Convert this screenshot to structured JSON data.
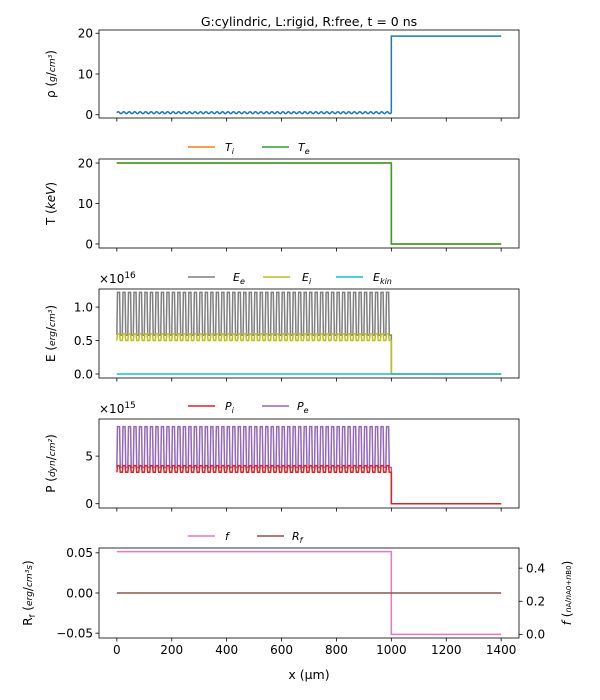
{
  "figure": {
    "title": "G:cylindric, L:rigid, R:free, t = 0 ns",
    "xlabel": "x (μm)"
  },
  "chart_data": [
    {
      "type": "line",
      "ylabel": "ρ (g/cm³)",
      "ylim": [
        -0.8,
        20.8
      ],
      "yticks": [
        0,
        10,
        20
      ],
      "multiplier": "",
      "legend": [],
      "series": [
        {
          "name": "ρ",
          "color": "#1f77b4",
          "kind": "rho",
          "left": 0.5,
          "right": 19.3,
          "osc_amp": 0.25,
          "ncycles": 50
        }
      ]
    },
    {
      "type": "line",
      "ylabel": "T (keV)",
      "ylim": [
        -1.0,
        21.0
      ],
      "yticks": [
        0,
        10,
        20
      ],
      "multiplier": "",
      "legend": [
        {
          "label": "T",
          "sub": "i",
          "color": "#ff7f0e"
        },
        {
          "label": "T",
          "sub": "e",
          "color": "#2ca02c"
        }
      ],
      "series": [
        {
          "name": "Ti",
          "color": "#ff7f0e",
          "kind": "step",
          "left": 20,
          "right": 0
        },
        {
          "name": "Te",
          "color": "#2ca02c",
          "kind": "step",
          "left": 20,
          "right": 0
        }
      ]
    },
    {
      "type": "line",
      "ylabel": "E (erg/cm³)",
      "ylim": [
        -0.06,
        1.27
      ],
      "yticks": [
        0.0,
        0.5,
        1.0
      ],
      "ytick_labels": [
        "0.0",
        "0.5",
        "1.0"
      ],
      "multiplier": "×10",
      "multiplier_exp": "16",
      "legend": [
        {
          "label": "E",
          "sub": "e",
          "color": "#7f7f7f"
        },
        {
          "label": "E",
          "sub": "i",
          "color": "#bcbd22"
        },
        {
          "label": "E",
          "sub": "kin",
          "color": "#17becf"
        }
      ],
      "series": [
        {
          "name": "Ee",
          "color": "#7f7f7f",
          "kind": "osc",
          "low": 0.58,
          "high": 1.22,
          "right": 0,
          "ncycles": 50
        },
        {
          "name": "Ei",
          "color": "#bcbd22",
          "kind": "osc",
          "low": 0.5,
          "high": 0.6,
          "right": 0,
          "ncycles": 50
        },
        {
          "name": "Ekin",
          "color": "#17becf",
          "kind": "step",
          "left": 0,
          "right": 0
        }
      ]
    },
    {
      "type": "line",
      "ylabel": "P (dyn/cm²)",
      "ylim": [
        -0.45,
        8.9
      ],
      "yticks": [
        0,
        5
      ],
      "multiplier": "×10",
      "multiplier_exp": "15",
      "legend": [
        {
          "label": "P",
          "sub": "i",
          "color": "#d62728"
        },
        {
          "label": "P",
          "sub": "e",
          "color": "#9467bd"
        }
      ],
      "series": [
        {
          "name": "Pe",
          "color": "#9467bd",
          "kind": "osc",
          "low": 3.8,
          "high": 8.1,
          "right": 0,
          "ncycles": 50
        },
        {
          "name": "Pi",
          "color": "#d62728",
          "kind": "osc",
          "low": 3.3,
          "high": 4.0,
          "right": 0,
          "ncycles": 50
        }
      ]
    },
    {
      "type": "line",
      "ylabel": "R_f (erg/cm³s)",
      "ylim": [
        -0.056,
        0.056
      ],
      "yticks": [
        -0.05,
        0.0,
        0.05
      ],
      "ytick_labels": [
        "−0.05",
        "0.00",
        "0.05"
      ],
      "multiplier": "",
      "y2label": "f (nA/(nA0+nB0))",
      "y2lim": [
        -0.022,
        0.522
      ],
      "y2ticks": [
        0.0,
        0.2,
        0.4
      ],
      "y2tick_labels": [
        "0.0",
        "0.2",
        "0.4"
      ],
      "legend": [
        {
          "label": "f",
          "sub": "",
          "color": "#e377c2"
        },
        {
          "label": "R",
          "sub": "f",
          "color": "#8c564b"
        }
      ],
      "series": [
        {
          "name": "f",
          "color": "#e377c2",
          "kind": "step",
          "axis": "y2",
          "left": 0.5,
          "right": 0.0
        },
        {
          "name": "Rf",
          "color": "#8c564b",
          "kind": "step",
          "left": 0.0,
          "right": 0.0
        }
      ]
    }
  ],
  "x_axis": {
    "xlim": [
      -65,
      1465
    ],
    "ticks": [
      0,
      200,
      400,
      600,
      800,
      1000,
      1200,
      1400
    ],
    "tick_labels": [
      "0",
      "200",
      "400",
      "600",
      "800",
      "1000",
      "1200",
      "1400"
    ],
    "interface": 1000,
    "xmax": 1400
  }
}
